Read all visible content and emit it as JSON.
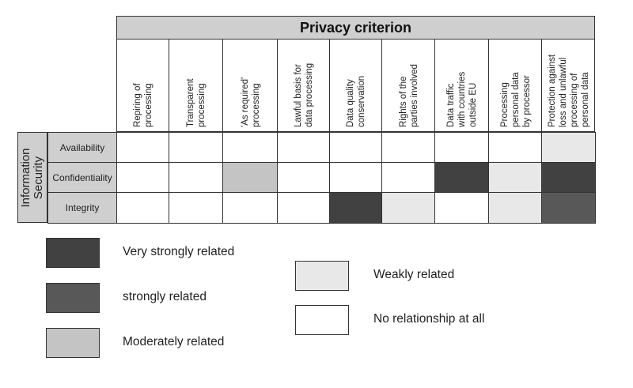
{
  "header": {
    "title": "Privacy criterion"
  },
  "columns": [
    {
      "lines": [
        "Repiring of",
        "processing"
      ]
    },
    {
      "lines": [
        "Transparent",
        "processing"
      ]
    },
    {
      "lines": [
        "'As required'",
        "processing"
      ]
    },
    {
      "lines": [
        "Lawful basis for",
        "data processing"
      ]
    },
    {
      "lines": [
        "Data quality",
        "conservation"
      ]
    },
    {
      "lines": [
        "Rights of the",
        "parties involved"
      ]
    },
    {
      "lines": [
        "Data traffic",
        "with countries",
        "outside EU"
      ]
    },
    {
      "lines": [
        "Processing",
        "personal data",
        "by processor"
      ]
    },
    {
      "lines": [
        "Protection against",
        "loss and unlawful",
        "processing of",
        "personal data"
      ]
    }
  ],
  "sidebar": {
    "lines": [
      "Information",
      "Security"
    ]
  },
  "rows": [
    {
      "label": "Availability",
      "levels": [
        0,
        0,
        0,
        0,
        0,
        0,
        0,
        0,
        1
      ]
    },
    {
      "label": "Confidentiality",
      "levels": [
        0,
        0,
        2,
        0,
        0,
        0,
        4,
        1,
        4
      ]
    },
    {
      "label": "Integrity",
      "levels": [
        0,
        0,
        0,
        0,
        4,
        1,
        0,
        1,
        3
      ]
    }
  ],
  "legend": [
    {
      "level": 4,
      "label": "Very strongly related"
    },
    {
      "level": 3,
      "label": "strongly related"
    },
    {
      "level": 2,
      "label": "Moderately related"
    },
    {
      "level": 1,
      "label": "Weakly related"
    },
    {
      "level": 0,
      "label": "No relationship at all"
    }
  ],
  "colors": {
    "level_0": "#ffffff",
    "level_1": "#e8e8e8",
    "level_2": "#c4c4c4",
    "level_3": "#585858",
    "level_4": "#414141",
    "band": "#cfcfcf",
    "border": "#333333"
  }
}
